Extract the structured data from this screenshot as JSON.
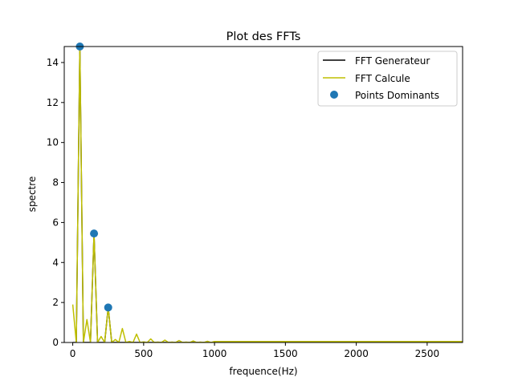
{
  "chart_data": {
    "type": "line",
    "title": "Plot des FFTs",
    "xlabel": "frequence(Hz)",
    "ylabel": "spectre",
    "xlim": [
      -60,
      2750
    ],
    "ylim": [
      0,
      14.8
    ],
    "xticks": [
      0,
      500,
      1000,
      1500,
      2000,
      2500
    ],
    "yticks": [
      0,
      2,
      4,
      6,
      8,
      10,
      12,
      14
    ],
    "grid": false,
    "legend_position": "top-right",
    "series": [
      {
        "name": "FFT Generateur",
        "color": "#000000",
        "x": [
          0,
          25,
          50,
          75,
          100,
          125,
          150,
          175,
          200,
          225,
          250,
          275,
          300,
          325,
          350,
          375,
          400,
          425,
          450,
          475,
          500,
          525,
          550,
          575,
          600,
          625,
          650,
          675,
          700,
          725,
          750,
          775,
          800,
          825,
          850,
          875,
          900,
          925,
          950,
          975,
          1000,
          2750
        ],
        "y": [
          0,
          0,
          14.8,
          0,
          0,
          0,
          5.45,
          0,
          0,
          0,
          1.75,
          0,
          0,
          0,
          0,
          0,
          0,
          0,
          0,
          0,
          0,
          0,
          0,
          0,
          0,
          0,
          0,
          0,
          0,
          0,
          0,
          0,
          0,
          0,
          0,
          0,
          0,
          0,
          0,
          0,
          0,
          0
        ]
      },
      {
        "name": "FFT Calcule",
        "color": "#bfbf00",
        "x": [
          0,
          25,
          50,
          75,
          100,
          125,
          150,
          175,
          200,
          225,
          250,
          275,
          300,
          325,
          350,
          375,
          400,
          425,
          450,
          475,
          500,
          525,
          550,
          575,
          600,
          625,
          650,
          675,
          700,
          725,
          750,
          775,
          800,
          825,
          850,
          875,
          900,
          925,
          950,
          975,
          1000,
          1050,
          1100,
          1150,
          1200,
          1250,
          1300,
          1350,
          1400,
          1450,
          1500,
          1550,
          1600,
          1650,
          1700,
          1750,
          1800,
          1850,
          1900,
          1950,
          2000,
          2050,
          2100,
          2150,
          2200,
          2250,
          2300,
          2350,
          2400,
          2450,
          2500,
          2550,
          2600,
          2650,
          2700,
          2750
        ],
        "y": [
          1.9,
          0,
          14.8,
          0,
          1.15,
          0,
          5.45,
          0,
          0.3,
          0,
          1.75,
          0,
          0.15,
          0,
          0.7,
          0,
          0.05,
          0,
          0.42,
          0,
          0.03,
          0,
          0.18,
          0,
          0.02,
          0,
          0.12,
          0,
          0.02,
          0,
          0.1,
          0,
          0.02,
          0,
          0.08,
          0,
          0.02,
          0,
          0.06,
          0,
          0.05,
          0.05,
          0.05,
          0.05,
          0.05,
          0.05,
          0.05,
          0.05,
          0.05,
          0.05,
          0.05,
          0.05,
          0.05,
          0.05,
          0.05,
          0.05,
          0.05,
          0.05,
          0.05,
          0.05,
          0.05,
          0.05,
          0.05,
          0.05,
          0.05,
          0.05,
          0.05,
          0.05,
          0.05,
          0.05,
          0.05,
          0.05,
          0.05,
          0.05,
          0.05,
          0.05
        ]
      },
      {
        "name": "Points Dominants",
        "type": "scatter",
        "color": "#1f77b4",
        "x": [
          50,
          150,
          250
        ],
        "y": [
          14.8,
          5.45,
          1.75
        ]
      }
    ]
  }
}
